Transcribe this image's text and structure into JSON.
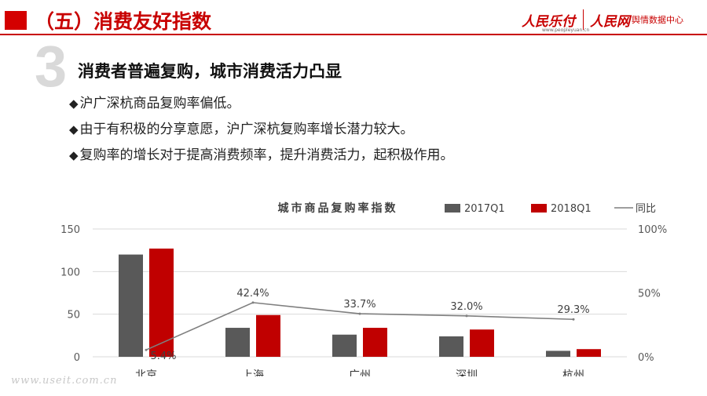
{
  "header": {
    "title": "（五）消费友好指数",
    "logo_left": "人民乐付",
    "logo_left_sub": "www.peopleyuan.cn",
    "logo_right": "人民网",
    "logo_right_sub": "舆情数据中心"
  },
  "section": {
    "number": "3",
    "title": "消费者普遍复购，城市消费活力凸显"
  },
  "bullets": [
    {
      "mark": "◆",
      "text": "沪广深杭商品复购率偏低。"
    },
    {
      "mark": "◆",
      "text": "由于有积极的分享意愿，沪广深杭复购率增长潜力较大。"
    },
    {
      "mark": "◆",
      "text": "复购率的增长对于提高消费频率，提升消费活力，起积极作用。"
    }
  ],
  "chart_data": {
    "type": "bar",
    "title": "城市商品复购率指数",
    "categories": [
      "北京",
      "上海",
      "广州",
      "深圳",
      "杭州"
    ],
    "series": [
      {
        "name": "2017Q1",
        "type": "bar",
        "axis": "left",
        "color": "#595959",
        "values": [
          120,
          34,
          26,
          24,
          7
        ]
      },
      {
        "name": "2018Q1",
        "type": "bar",
        "axis": "left",
        "color": "#c00000",
        "values": [
          127,
          49,
          34,
          32,
          9
        ]
      },
      {
        "name": "同比",
        "type": "line",
        "axis": "right",
        "color": "#7f7f7f",
        "values": [
          5.4,
          42.4,
          33.7,
          32.0,
          29.3
        ],
        "labels": [
          "5.4%",
          "42.4%",
          "33.7%",
          "32.0%",
          "29.3%"
        ]
      }
    ],
    "ylim_left": [
      0,
      150
    ],
    "yticks_left": [
      "0",
      "50",
      "100",
      "150"
    ],
    "ylim_right": [
      0,
      100
    ],
    "yticks_right": [
      "0%",
      "50%",
      "100%"
    ],
    "legend_position": "top-right",
    "grid": true
  },
  "watermark": "www.useit.com.cn"
}
